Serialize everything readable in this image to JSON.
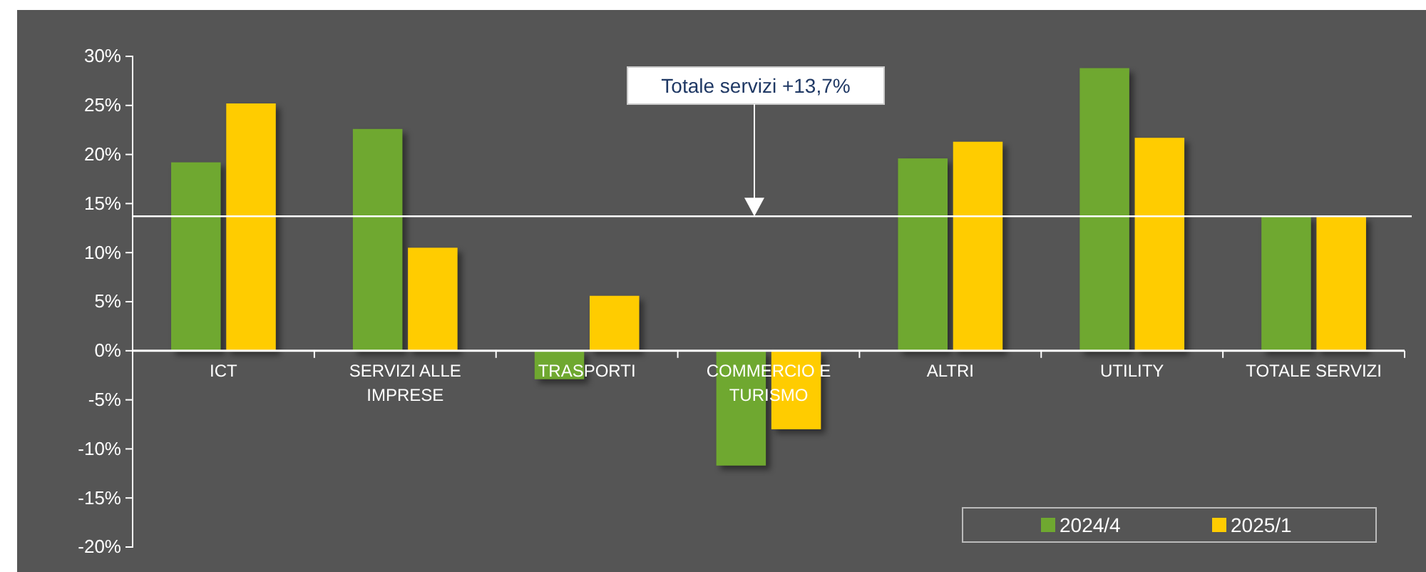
{
  "chart_data": {
    "type": "bar",
    "categories": [
      "ICT",
      "SERVIZI ALLE IMPRESE",
      "TRASPORTI",
      "COMMERCIO E TURISMO",
      "ALTRI",
      "UTILITY",
      "TOTALE SERVIZI"
    ],
    "series": [
      {
        "name": "2024/4",
        "color": "#6fa830",
        "values": [
          19.2,
          22.6,
          -2.9,
          -11.7,
          19.6,
          28.8,
          13.7
        ]
      },
      {
        "name": "2025/1",
        "color": "#ffcc00",
        "values": [
          25.2,
          10.5,
          5.6,
          -8.0,
          21.3,
          21.7,
          13.7
        ]
      }
    ],
    "ylim": [
      -20,
      30
    ],
    "yticks": [
      {
        "value": -20,
        "label": "-20%"
      },
      {
        "value": -15,
        "label": "-15%"
      },
      {
        "value": -10,
        "label": "-10%"
      },
      {
        "value": -5,
        "label": "-5%"
      },
      {
        "value": 0,
        "label": "0%"
      },
      {
        "value": 5,
        "label": "5%"
      },
      {
        "value": 10,
        "label": "10%"
      },
      {
        "value": 15,
        "label": "15%"
      },
      {
        "value": 20,
        "label": "20%"
      },
      {
        "value": 25,
        "label": "25%"
      },
      {
        "value": 30,
        "label": "30%"
      }
    ],
    "ref_lines": [
      {
        "axis": "y",
        "value": 13.7,
        "color": "#ffffff"
      }
    ],
    "annotations": [
      "Totale servizi +13,7%"
    ],
    "grid": false,
    "legend": "bottom right"
  }
}
